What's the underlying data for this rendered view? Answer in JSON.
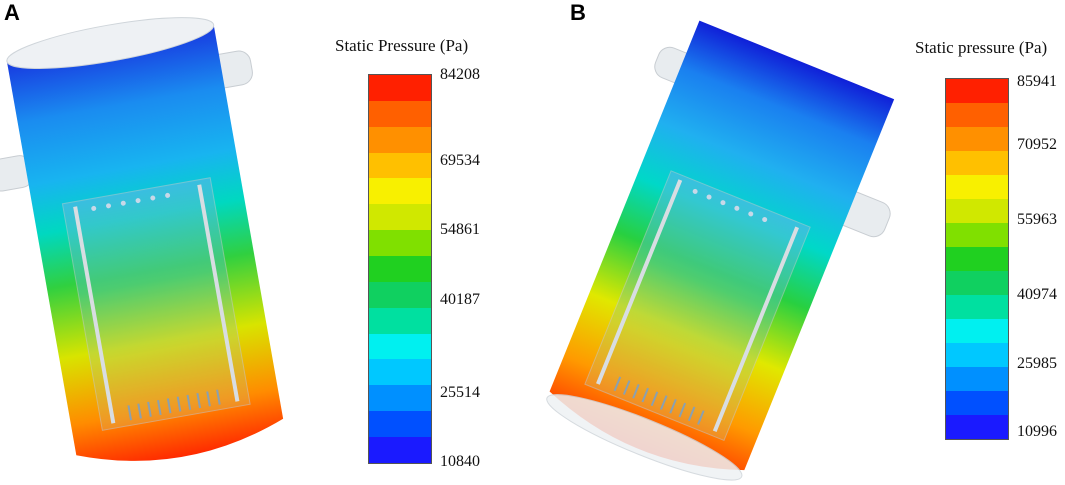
{
  "panels": [
    {
      "letter": "A",
      "legend_title": "Static Pressure (Pa)",
      "ticks": [
        "84208",
        "69534",
        "54861",
        "40187",
        "25514",
        "10840"
      ]
    },
    {
      "letter": "B",
      "legend_title": "Static pressure (Pa)",
      "ticks": [
        "85941",
        "70952",
        "55963",
        "40974",
        "25985",
        "10996"
      ]
    }
  ],
  "colormap": [
    "#1a1aff",
    "#0050ff",
    "#0090ff",
    "#00c8ff",
    "#00f0f0",
    "#00e0a0",
    "#10d060",
    "#20d020",
    "#80e000",
    "#d0e800",
    "#f8f000",
    "#ffc000",
    "#ff9000",
    "#ff6000",
    "#ff2000"
  ]
}
